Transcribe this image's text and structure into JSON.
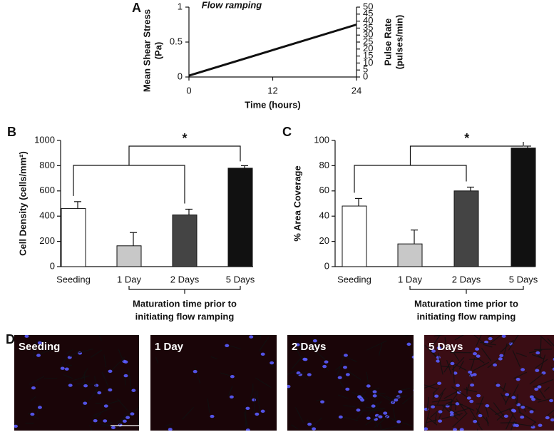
{
  "chart_data": [
    {
      "type": "line",
      "label": "A",
      "title": "Flow ramping",
      "xlabel": "Time (hours)",
      "ylabel": [
        "Mean Shear Stress",
        "(Pa)"
      ],
      "y2label": [
        "Pulse Rate",
        "(pulses/min)"
      ],
      "x": [
        0,
        24
      ],
      "series": [
        {
          "values": [
            0.02,
            0.75
          ],
          "color": "#111111"
        }
      ],
      "xlim": [
        0,
        24
      ],
      "xticks": [
        0,
        12,
        24
      ],
      "ylim": [
        0,
        1
      ],
      "yticks": [
        0,
        0.5,
        1
      ],
      "y2lim": [
        0,
        50
      ],
      "y2ticks": [
        0,
        5,
        10,
        15,
        20,
        25,
        30,
        35,
        40,
        45,
        50
      ]
    },
    {
      "type": "bar",
      "label": "B",
      "ylabel": "Cell Density (cells/mm²)",
      "categories": [
        "Seeding",
        "1 Day",
        "2 Days",
        "5 Days"
      ],
      "values": [
        460,
        165,
        410,
        780
      ],
      "errors": [
        55,
        105,
        45,
        20
      ],
      "colors": [
        "#ffffff",
        "#c8c8c8",
        "#444444",
        "#111111"
      ],
      "ylim": [
        0,
        1000
      ],
      "yticks": [
        0,
        200,
        400,
        600,
        800,
        1000
      ],
      "annotation": "*",
      "xlabel": [
        "Maturation time prior to",
        "initiating flow ramping"
      ]
    },
    {
      "type": "bar",
      "label": "C",
      "ylabel": "% Area Coverage",
      "categories": [
        "Seeding",
        "1 Day",
        "2 Days",
        "5 Days"
      ],
      "values": [
        48,
        18,
        60,
        94
      ],
      "errors": [
        6,
        11,
        3,
        1.5
      ],
      "colors": [
        "#ffffff",
        "#c8c8c8",
        "#444444",
        "#111111"
      ],
      "ylim": [
        0,
        100
      ],
      "yticks": [
        0,
        20,
        40,
        60,
        80,
        100
      ],
      "annotation": "*",
      "xlabel": [
        "Maturation time prior to",
        "initiating flow ramping"
      ]
    }
  ],
  "panel_d": {
    "label": "D",
    "images": [
      "Seeding",
      "1 Day",
      "2 Days",
      "5 Days"
    ]
  }
}
